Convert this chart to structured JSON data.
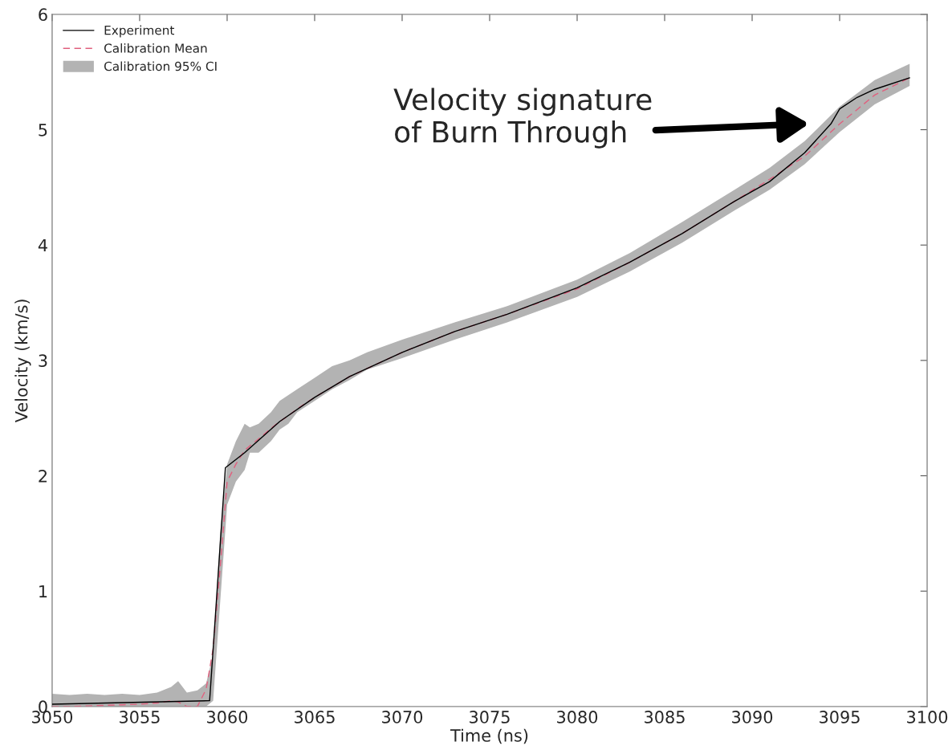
{
  "chart_data": {
    "type": "line",
    "xlabel": "Time (ns)",
    "ylabel": "Velocity (km/s)",
    "xlim": [
      3050,
      3100
    ],
    "xticks": [
      3050,
      3055,
      3060,
      3065,
      3070,
      3075,
      3080,
      3085,
      3090,
      3095,
      3100
    ],
    "ylim": [
      0,
      6
    ],
    "yticks": [
      0,
      1,
      2,
      3,
      4,
      5,
      6
    ],
    "grid": false,
    "legend": "top left",
    "annotations": [
      "Calibration 95% CI",
      "Velocity signature\nof Burn Through"
    ],
    "series": [
      {
        "name": "Experiment",
        "color": "#000000",
        "line_style": "solid",
        "x": [
          3050,
          3059,
          3059.9,
          3061,
          3063,
          3065,
          3067,
          3070,
          3073,
          3076,
          3080,
          3083,
          3086,
          3089,
          3091,
          3093,
          3094.5,
          3095,
          3096,
          3097,
          3099
        ],
        "values": [
          0.02,
          0.05,
          2.07,
          2.2,
          2.47,
          2.68,
          2.86,
          3.07,
          3.25,
          3.4,
          3.63,
          3.85,
          4.1,
          4.38,
          4.55,
          4.8,
          5.05,
          5.18,
          5.28,
          5.35,
          5.45
        ]
      },
      {
        "name": "Calibration Mean",
        "color": "#e0607e",
        "line_style": "dashed",
        "x": [
          3050,
          3051,
          3052,
          3053,
          3054,
          3055,
          3056,
          3056.8,
          3057.2,
          3057.7,
          3058.3,
          3058.8,
          3059.2,
          3059.6,
          3060,
          3060.5,
          3061,
          3061.3,
          3061.8,
          3062.5,
          3063,
          3063.5,
          3064,
          3065,
          3066,
          3067,
          3068,
          3070,
          3073,
          3076,
          3080,
          3083,
          3086,
          3089,
          3091,
          3093,
          3095,
          3097,
          3099
        ],
        "values": [
          0,
          0,
          0.005,
          0.01,
          0.015,
          0.02,
          0.03,
          0.05,
          0.04,
          0,
          0,
          0.15,
          0.5,
          1.2,
          1.95,
          2.1,
          2.22,
          2.26,
          2.32,
          2.41,
          2.47,
          2.52,
          2.58,
          2.68,
          2.77,
          2.86,
          2.93,
          3.07,
          3.25,
          3.4,
          3.62,
          3.85,
          4.1,
          4.38,
          4.57,
          4.77,
          5.05,
          5.3,
          5.45
        ],
        "lower": [
          0,
          0,
          0,
          0,
          0,
          0,
          0,
          0,
          0,
          0,
          0,
          0,
          0.05,
          0.9,
          1.75,
          1.95,
          2.05,
          2.2,
          2.2,
          2.3,
          2.4,
          2.45,
          2.55,
          2.65,
          2.75,
          2.83,
          2.92,
          3.02,
          3.18,
          3.33,
          3.55,
          3.77,
          4.02,
          4.3,
          4.48,
          4.7,
          4.98,
          5.22,
          5.38
        ],
        "upper": [
          0.11,
          0.1,
          0.11,
          0.1,
          0.11,
          0.1,
          0.12,
          0.17,
          0.22,
          0.12,
          0.14,
          0.2,
          0.45,
          1.5,
          2.1,
          2.3,
          2.45,
          2.42,
          2.45,
          2.55,
          2.65,
          2.7,
          2.75,
          2.85,
          2.95,
          3.0,
          3.07,
          3.18,
          3.33,
          3.47,
          3.7,
          3.93,
          4.2,
          4.48,
          4.67,
          4.9,
          5.2,
          5.43,
          5.57
        ]
      }
    ]
  }
}
